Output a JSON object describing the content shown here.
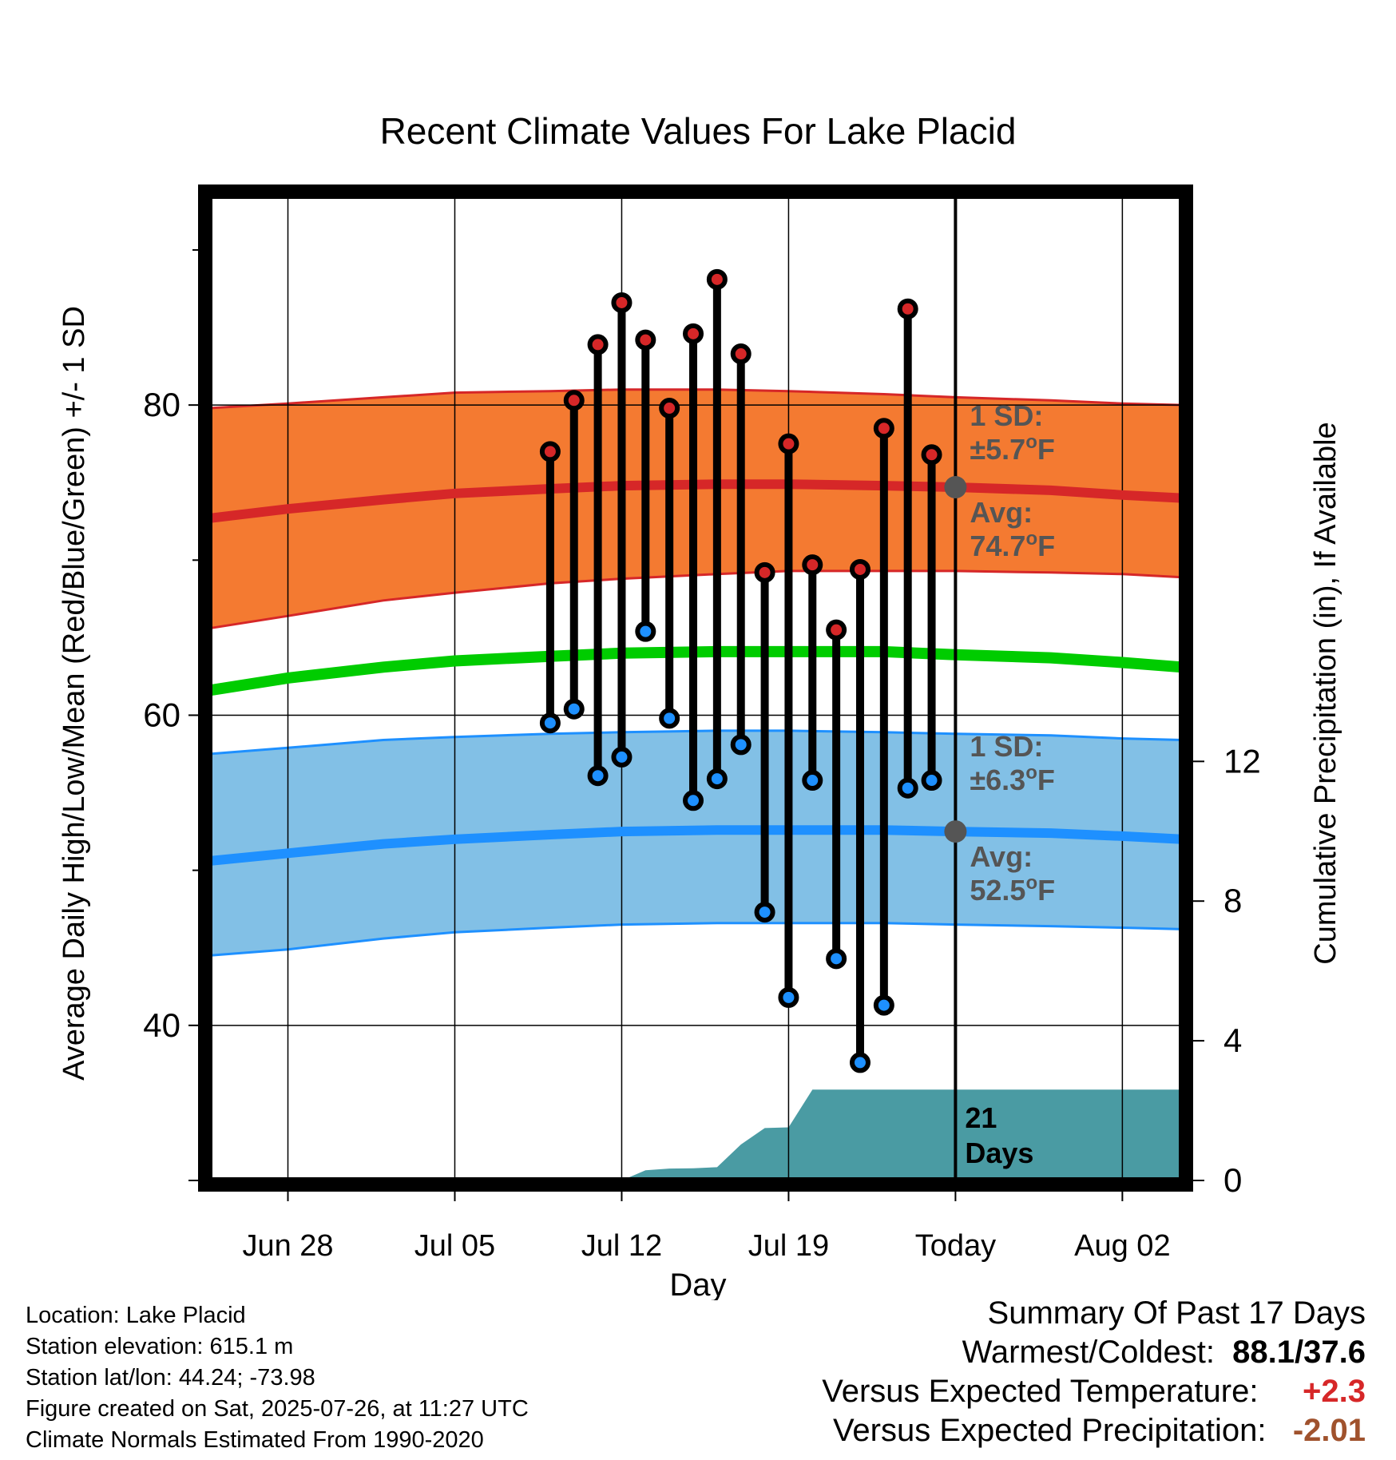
{
  "chart_data": {
    "type": "line",
    "title": "Recent Climate Values For Lake Placid",
    "xlabel": "Day",
    "ylabel": "Average Daily High/Low/Mean (Red/Blue/Green) +/- 1 SD",
    "ylabel_right": "Cumulative Precipitation (in), If Available",
    "x_tick_labels": [
      "Jun 28",
      "Jul 05",
      "Jul 12",
      "Jul 19",
      "Today",
      "Aug 02"
    ],
    "x_ticks_day": [
      -28,
      -21,
      -14,
      -7,
      0,
      7
    ],
    "x_range_day": [
      -31.3,
      9.5
    ],
    "ylim": [
      30,
      93.5
    ],
    "y_ticks": [
      40,
      60,
      80
    ],
    "y_ticks_minor": [
      50,
      70,
      90
    ],
    "y2lim": [
      0,
      28.2
    ],
    "y2_ticks": [
      0,
      4,
      8,
      12
    ],
    "grid": true,
    "today_marker_label": "21\nDays",
    "today_label_line1": "21",
    "today_label_line2": "Days",
    "normals": {
      "day": [
        -31.3,
        -28,
        -24,
        -21,
        -17,
        -14,
        -10,
        -7,
        -3,
        0,
        4,
        7,
        9.5
      ],
      "high_mean": [
        72.7,
        73.3,
        73.9,
        74.3,
        74.6,
        74.8,
        74.9,
        74.9,
        74.8,
        74.7,
        74.5,
        74.2,
        74.0
      ],
      "high_upper": [
        79.8,
        80.1,
        80.5,
        80.8,
        80.9,
        81.0,
        81.0,
        80.9,
        80.7,
        80.5,
        80.3,
        80.1,
        80.0
      ],
      "high_lower": [
        65.6,
        66.4,
        67.4,
        67.9,
        68.5,
        68.8,
        69.1,
        69.3,
        69.3,
        69.3,
        69.2,
        69.1,
        68.9
      ],
      "mean": [
        61.6,
        62.4,
        63.1,
        63.5,
        63.8,
        64.0,
        64.1,
        64.1,
        64.1,
        63.9,
        63.7,
        63.4,
        63.1
      ],
      "low_mean": [
        50.6,
        51.1,
        51.7,
        52.0,
        52.3,
        52.5,
        52.6,
        52.6,
        52.6,
        52.5,
        52.4,
        52.2,
        52.0
      ],
      "low_upper": [
        57.5,
        57.9,
        58.4,
        58.6,
        58.8,
        58.9,
        59.0,
        59.0,
        58.9,
        58.8,
        58.7,
        58.5,
        58.4
      ],
      "low_lower": [
        44.5,
        44.9,
        45.6,
        46.0,
        46.3,
        46.5,
        46.6,
        46.6,
        46.6,
        46.5,
        46.4,
        46.3,
        46.2
      ]
    },
    "observations": {
      "day": [
        -17,
        -16,
        -15,
        -14,
        -13,
        -12,
        -11,
        -10,
        -9,
        -8,
        -7,
        -6,
        -5,
        -4,
        -3,
        -2,
        -1
      ],
      "high": [
        77.0,
        80.3,
        83.9,
        86.6,
        84.2,
        79.8,
        84.6,
        88.1,
        83.3,
        69.2,
        77.5,
        69.7,
        65.5,
        69.4,
        78.5,
        86.2,
        76.8
      ],
      "low": [
        59.5,
        60.4,
        56.1,
        57.3,
        65.4,
        59.8,
        54.5,
        55.9,
        58.1,
        47.3,
        41.8,
        55.8,
        44.3,
        37.6,
        41.3,
        55.3,
        55.8
      ]
    },
    "annotations": {
      "high_sd_line1": "1 SD:",
      "high_sd_line2": "±5.7°F",
      "high_avg_line1": "Avg:",
      "high_avg_line2": "74.7°F",
      "low_sd_line1": "1 SD:",
      "low_sd_line2": "±6.3°F",
      "low_avg_line1": "Avg:",
      "low_avg_line2": "52.5°F",
      "high_avg_value": 74.7,
      "low_avg_value": 52.5
    },
    "precipitation": {
      "day": [
        -14,
        -13,
        -12,
        -11,
        -10,
        -9,
        -8,
        -7,
        -6,
        -5,
        -4,
        -3,
        -2,
        -1,
        0,
        9.5
      ],
      "cumulative_in": [
        0.0,
        0.29,
        0.34,
        0.35,
        0.38,
        1.03,
        1.5,
        1.52,
        2.6,
        2.6,
        2.6,
        2.6,
        2.6,
        2.6,
        2.6,
        2.6
      ]
    },
    "colors": {
      "high_band": "#f47a31",
      "high_line": "#d62728",
      "high_band_edge": "#d62728",
      "mean_line": "#00cc00",
      "low_band": "#82c0e6",
      "low_line": "#1e90ff",
      "low_band_edge": "#1e90ff",
      "precip": "#4a9ba3",
      "high_dot": "#d62728",
      "low_dot": "#1e90ff",
      "avg_dot": "#555555",
      "annotation_text": "#555555"
    }
  },
  "info": {
    "location": "Location: Lake Placid",
    "elevation": "Station elevation: 615.1 m",
    "latlon": "Station lat/lon: 44.24; -73.98",
    "created": "Figure created on Sat, 2025-07-26, at 11:27 UTC",
    "normals": "Climate Normals Estimated From 1990-2020"
  },
  "summary": {
    "heading": "Summary Of Past 17 Days",
    "warm_cold_label": "Warmest/Coldest:",
    "warm_cold_value": "88.1/37.6",
    "temp_label": "Versus Expected Temperature:",
    "temp_value": "+2.3",
    "temp_color": "#d62728",
    "precip_label": "Versus Expected Precipitation:",
    "precip_value": "-2.01",
    "precip_color": "#a0522d"
  }
}
